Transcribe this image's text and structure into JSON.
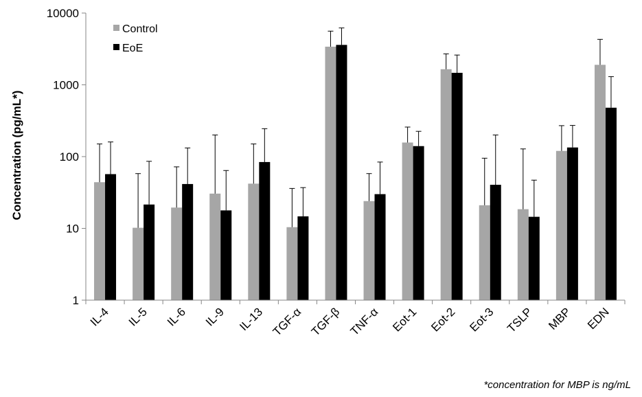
{
  "chart_data": {
    "type": "bar",
    "ylabel": "Concentration (pg/mL*)",
    "xlabel": "",
    "yscale": "log",
    "ylim": [
      1,
      10000
    ],
    "y_ticks": [
      "1",
      "10",
      "100",
      "1000",
      "10000"
    ],
    "categories": [
      "IL-4",
      "IL-5",
      "IL-6",
      "IL-9",
      "IL-13",
      "TGF-α",
      "TGF-β",
      "TNF-α",
      "Eot-1",
      "Eot-2",
      "Eot-3",
      "TSLP",
      "MBP",
      "EDN"
    ],
    "series": [
      {
        "name": "Control",
        "color": "#a6a6a6",
        "values": [
          44,
          10.2,
          19.5,
          30.5,
          42,
          10.4,
          3400,
          24,
          157,
          1650,
          21,
          18.5,
          120,
          1900
        ],
        "error_upper": [
          150,
          58,
          72,
          200,
          150,
          36,
          5600,
          58,
          258,
          2700,
          95,
          128,
          270,
          4300
        ]
      },
      {
        "name": "EoE",
        "color": "#000000",
        "values": [
          57,
          21.5,
          41.5,
          17.8,
          84,
          14.7,
          3600,
          30,
          140,
          1470,
          40.5,
          14.5,
          134,
          480
        ],
        "error_upper": [
          160,
          86,
          132,
          64,
          245,
          37,
          6200,
          84,
          225,
          2600,
          200,
          47,
          272,
          1300
        ]
      }
    ],
    "legend_position": "top-left",
    "grid": false
  },
  "footnote": "*concentration for MBP is ng/mL"
}
